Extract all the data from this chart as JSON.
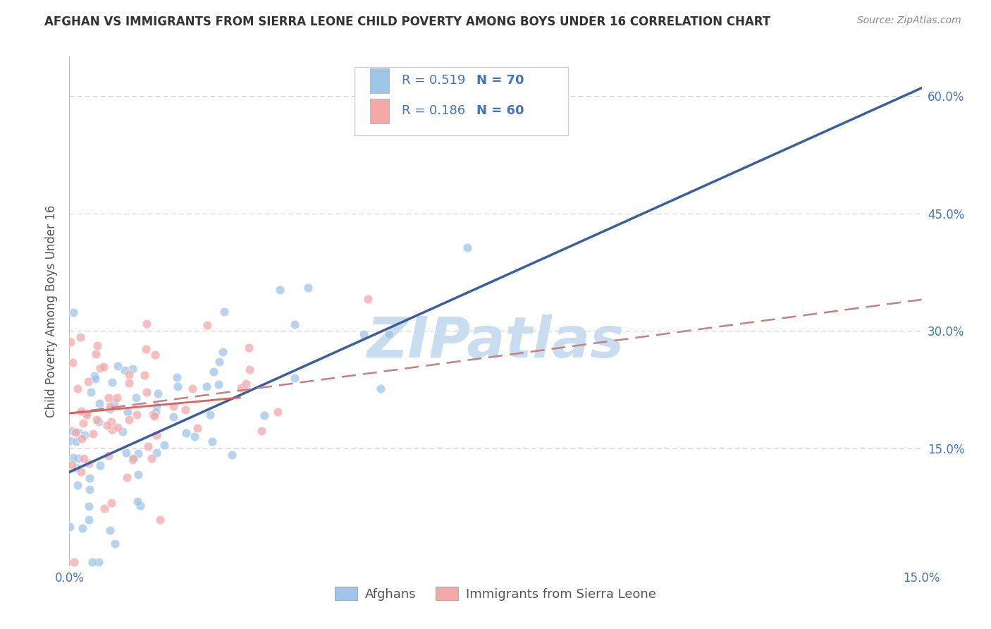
{
  "title": "AFGHAN VS IMMIGRANTS FROM SIERRA LEONE CHILD POVERTY AMONG BOYS UNDER 16 CORRELATION CHART",
  "source": "Source: ZipAtlas.com",
  "ylabel": "Child Poverty Among Boys Under 16",
  "xlim": [
    0.0,
    0.15
  ],
  "ylim": [
    0.0,
    0.65
  ],
  "blue_color": "#9fc5e8",
  "pink_color": "#f4a8a8",
  "line_blue": "#3a5fa0",
  "line_pink": "#e06060",
  "line_pink_dashed": "#c48080",
  "watermark_color": "#c8ddf0",
  "title_color": "#333333",
  "source_color": "#888888",
  "axis_label_color": "#555555",
  "tick_color": "#4472c4",
  "grid_color": "#cccccc",
  "background_color": "#ffffff",
  "r_afghan": 0.519,
  "n_afghan": 70,
  "r_sierra": 0.186,
  "n_sierra": 60,
  "afghan_line_y0": 0.12,
  "afghan_line_y1": 0.61,
  "sierra_line_y0": 0.195,
  "sierra_line_y1": 0.34
}
